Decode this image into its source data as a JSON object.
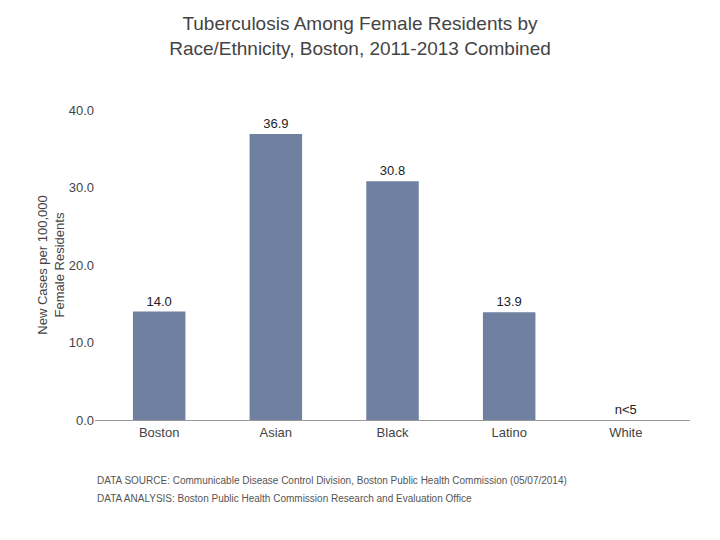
{
  "chart_data": {
    "type": "bar",
    "title": "Tuberculosis Among Female Residents by\nRace/Ethnicity, Boston, 2011-2013 Combined",
    "y_label": "New Cases per 100,000\nFemale Residents",
    "categories": [
      "Boston",
      "Asian",
      "Black",
      "Latino",
      "White"
    ],
    "values": [
      14.0,
      36.9,
      30.8,
      13.9,
      0
    ],
    "value_labels": [
      "14.0",
      "36.9",
      "30.8",
      "13.9",
      "n<5"
    ],
    "data_labels": true,
    "color": "#7080a0",
    "ylim": [
      0,
      40.0
    ],
    "yticks": [
      {
        "value": 0.0,
        "label": "0.0"
      },
      {
        "value": 10.0,
        "label": "10.0"
      },
      {
        "value": 20.0,
        "label": "20.0"
      },
      {
        "value": 30.0,
        "label": "30.0"
      },
      {
        "value": 40.0,
        "label": "40.0"
      }
    ],
    "grid": false,
    "annotations": [
      "DATA SOURCE: Communicable Disease Control Division, Boston Public Health Commission (05/07/2014)",
      "DATA ANALYSIS: Boston Public Health Commission Research and Evaluation Office"
    ]
  }
}
